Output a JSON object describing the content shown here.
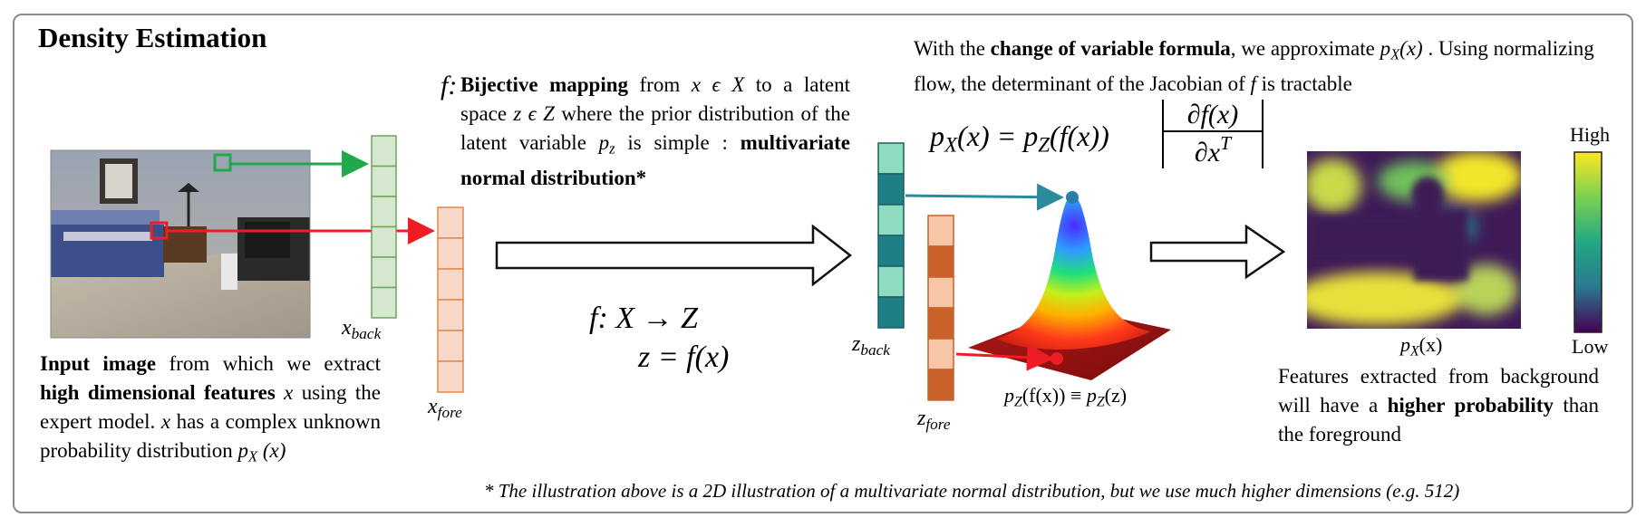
{
  "title": "Density Estimation",
  "input_desc": {
    "b1": "Input image",
    "t1": " from which we extract ",
    "b2": "high dimensional features",
    "x1": "x",
    "t2": " using the expert model. ",
    "x2": "x",
    "t3": " has a complex unknown probability distribution ",
    "p": "p",
    "psub": "X",
    "arg": " (x)"
  },
  "mapping_desc": {
    "flabel": "f:",
    "b1": "Bijective mapping",
    "t1": " from ",
    "m1": "x ϵ X",
    "t2": " to a latent space ",
    "m2": "z ϵ Z",
    "t3": " where the prior distribution of the latent variable ",
    "p": "p",
    "psub": "z",
    "t4": " is simple : ",
    "b2": "multivariate normal distribution*"
  },
  "cov_desc": {
    "t1": "With the ",
    "b1": "change of variable formula",
    "t2": ", we approximate ",
    "p": "p",
    "psub": "X",
    "arg": "(x)",
    "t3": " . Using normalizing flow, the determinant of the Jacobian of ",
    "f": "f",
    "t4": " is tractable"
  },
  "output_desc": {
    "t1": "Features extracted from background will have a ",
    "b1": "higher probability",
    "t2": " than the foreground"
  },
  "footnote": "* The illustration above is a 2D illustration of a multivariate normal distribution, but we use much higher dimensions (e.g. 512)",
  "labels": {
    "x_back": "x",
    "x_back_sub": "back",
    "x_fore": "x",
    "x_fore_sub": "fore",
    "z_back": "z",
    "z_back_sub": "back",
    "z_fore": "z",
    "z_fore_sub": "fore",
    "gauss_caption_p": "p",
    "gauss_caption_sub": "Z",
    "gauss_caption_mid": "(f(x)) ≡ ",
    "gauss_caption_p2": "p",
    "gauss_caption_sub2": "Z",
    "gauss_caption_end": "(z)",
    "map_caption_p": "p",
    "map_caption_sub": "X",
    "map_caption_end": "(x)",
    "colorbar_high": "High",
    "colorbar_low": "Low"
  },
  "formula_mapping": {
    "l1": "f:   X  → Z",
    "l2": "z = f(x)"
  },
  "formula_cov": {
    "lhs": "p",
    "lhs_sub": "X",
    "lhs_arg": "(x) = ",
    "rhs": "p",
    "rhs_sub": "Z",
    "rhs_arg": "(f(x))",
    "num": "∂f(x)",
    "den": "∂x",
    "den_sup": "T"
  },
  "colors": {
    "green_arrow": "#21a84a",
    "red_arrow": "#ee1c25",
    "teal_arrow": "#2a8a9e",
    "x_back_fill": "#d6e8cf",
    "x_back_stroke": "#6aa85a",
    "x_fore_fill": "#f8d9c9",
    "x_fore_stroke": "#e3884e",
    "z_back_dark": "#1f7f86",
    "z_back_light": "#8fdcc0",
    "z_fore_dark": "#c8622a",
    "z_fore_light": "#f6c6a6"
  }
}
